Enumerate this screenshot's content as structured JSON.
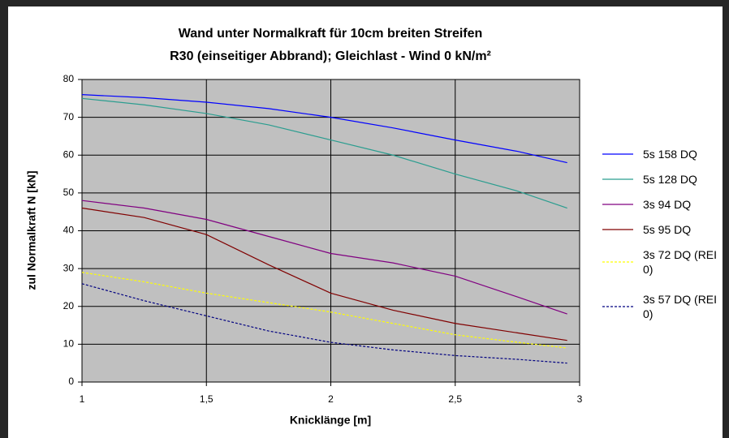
{
  "chart_data": {
    "type": "line",
    "title": "Wand unter Normalkraft für 10cm breiten Streifen",
    "subtitle": "R30 (einseitiger Abbrand); Gleichlast - Wind 0 kN/m²",
    "x_label": "Knicklänge [m]",
    "y_label": "zul Normalkraft N [kN]",
    "x": [
      1,
      1.25,
      1.5,
      1.75,
      2,
      2.25,
      2.5,
      2.75,
      2.95
    ],
    "series": [
      {
        "name": "5s 158 DQ",
        "color": "#0000ff",
        "dashed": false,
        "values": [
          76,
          75.2,
          74,
          72.3,
          70,
          67.2,
          64,
          61,
          58
        ]
      },
      {
        "name": "5s 128 DQ",
        "color": "#2a9d8f",
        "dashed": false,
        "values": [
          75,
          73.3,
          71,
          68,
          64,
          60,
          55,
          50.5,
          46
        ]
      },
      {
        "name": "3s 94 DQ",
        "color": "#800080",
        "dashed": false,
        "values": [
          48,
          46,
          43,
          38.5,
          34,
          31.5,
          28,
          22.5,
          18
        ]
      },
      {
        "name": "5s 95 DQ",
        "color": "#800000",
        "dashed": false,
        "values": [
          46,
          43.5,
          39,
          31,
          23.5,
          19,
          15.5,
          13,
          11
        ]
      },
      {
        "name": "3s 72 DQ (REI 0)",
        "color": "#ffff00",
        "dashed": true,
        "values": [
          29,
          26.5,
          23.5,
          21,
          18.5,
          15.5,
          12.5,
          10.5,
          9
        ]
      },
      {
        "name": "3s 57 DQ (REI 0)",
        "color": "#000080",
        "dashed": true,
        "values": [
          26,
          21.5,
          17.5,
          13.5,
          10.5,
          8.5,
          7,
          6,
          5
        ]
      }
    ],
    "xlim": [
      1,
      3
    ],
    "xticks": [
      1,
      {
        "value": 1.5,
        "label": "1,5"
      },
      2,
      {
        "value": 2.5,
        "label": "2,5"
      },
      3
    ],
    "ylim": [
      0,
      80
    ],
    "yticks": [
      0,
      10,
      20,
      30,
      40,
      50,
      60,
      70,
      80
    ],
    "grid": true,
    "legend": "right"
  }
}
